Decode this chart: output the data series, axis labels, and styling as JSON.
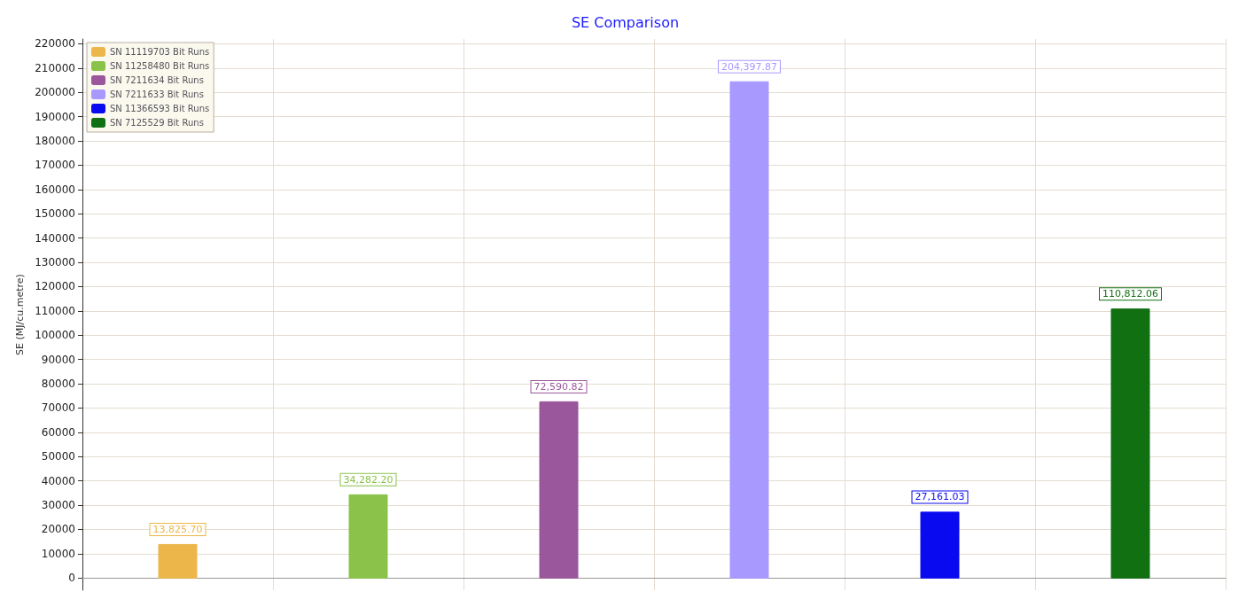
{
  "chart_data": {
    "type": "bar",
    "title": "SE Comparison",
    "ylabel": "SE (MJ/cu.metre)",
    "categories": [
      null,
      null,
      null,
      null,
      null,
      null
    ],
    "series": [
      {
        "name": "SN 11119703 Bit Runs",
        "color": "#ecb64a",
        "values": [
          13825.7,
          null,
          null,
          null,
          null,
          null
        ],
        "value_labels": [
          "13,825.70",
          null,
          null,
          null,
          null,
          null
        ]
      },
      {
        "name": "SN 11258480 Bit Runs",
        "color": "#8bc24a",
        "values": [
          null,
          34282.2,
          null,
          null,
          null,
          null
        ],
        "value_labels": [
          null,
          "34,282.20",
          null,
          null,
          null,
          null
        ]
      },
      {
        "name": "SN 7211634 Bit Runs",
        "color": "#9a579b",
        "values": [
          null,
          null,
          72590.82,
          null,
          null,
          null
        ],
        "value_labels": [
          null,
          null,
          "72,590.82",
          null,
          null,
          null
        ]
      },
      {
        "name": "SN 7211633 Bit Runs",
        "color": "#a899ff",
        "values": [
          null,
          null,
          null,
          204397.87,
          null,
          null
        ],
        "value_labels": [
          null,
          null,
          null,
          "204,397.87",
          null,
          null
        ]
      },
      {
        "name": "SN 11366593 Bit Runs",
        "color": "#0a0af0",
        "values": [
          null,
          null,
          null,
          null,
          27161.03,
          null
        ],
        "value_labels": [
          null,
          null,
          null,
          null,
          "27,161.03",
          null
        ]
      },
      {
        "name": "SN 7125529 Bit Runs",
        "color": "#117012",
        "values": [
          null,
          null,
          null,
          null,
          null,
          110812.06
        ],
        "value_labels": [
          null,
          null,
          null,
          null,
          null,
          "110,812.06"
        ]
      }
    ],
    "ylim": [
      -5000,
      222000
    ],
    "yticks": [
      0,
      10000,
      20000,
      30000,
      40000,
      50000,
      60000,
      70000,
      80000,
      90000,
      100000,
      110000,
      120000,
      130000,
      140000,
      150000,
      160000,
      170000,
      180000,
      190000,
      200000,
      210000,
      220000
    ],
    "grid": true,
    "legend": "top left"
  }
}
